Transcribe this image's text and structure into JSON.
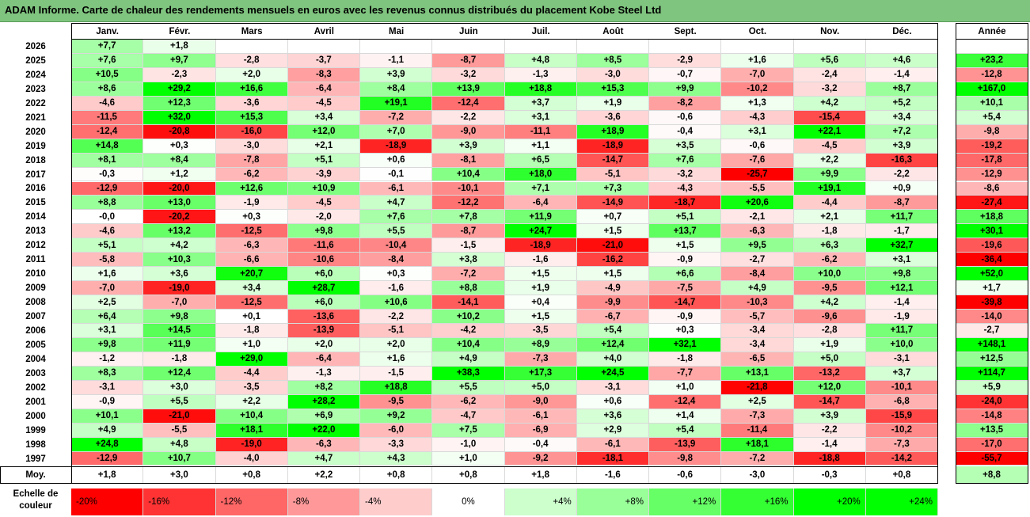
{
  "title": "ADAM Informe. Carte de chaleur des rendements mensuels en euros avec les revenus connus distribués du placement Kobe Steel Ltd",
  "columns": [
    "Janv.",
    "Févr.",
    "Mars",
    "Avril",
    "Mai",
    "Juin",
    "Juil.",
    "Août",
    "Sept.",
    "Oct.",
    "Nov.",
    "Déc."
  ],
  "year_header": "Année",
  "average_label": "Moy.",
  "scale_label": "Echelle de couleur",
  "colors": {
    "title_bar": "#7fc47f",
    "strong_neg": "#ff0000",
    "neutral": "#ffffff",
    "strong_pos": "#00ff00"
  },
  "chart_data": {
    "type": "heatmap",
    "title": "ADAM Informe. Carte de chaleur des rendements mensuels en euros avec les revenus connus distribués du placement Kobe Steel Ltd",
    "x_categories": [
      "Janv.",
      "Févr.",
      "Mars",
      "Avril",
      "Mai",
      "Juin",
      "Juil.",
      "Août",
      "Sept.",
      "Oct.",
      "Nov.",
      "Déc."
    ],
    "rows": [
      {
        "year": "2026",
        "months": [
          "+7,7",
          "+1,8",
          "",
          "",
          "",
          "",
          "",
          "",
          "",
          "",
          "",
          ""
        ],
        "annual": ""
      },
      {
        "year": "2025",
        "months": [
          "+7,6",
          "+9,7",
          "-2,8",
          "-3,7",
          "-1,1",
          "-8,7",
          "+4,8",
          "+8,5",
          "-2,9",
          "+1,6",
          "+5,6",
          "+4,6"
        ],
        "annual": "+23,2"
      },
      {
        "year": "2024",
        "months": [
          "+10,5",
          "-2,3",
          "+2,0",
          "-8,3",
          "+3,9",
          "-3,2",
          "-1,3",
          "-3,0",
          "-0,7",
          "-7,0",
          "-2,4",
          "-1,4"
        ],
        "annual": "-12,8"
      },
      {
        "year": "2023",
        "months": [
          "+8,6",
          "+29,2",
          "+16,6",
          "-6,4",
          "+8,4",
          "+13,9",
          "+18,8",
          "+15,3",
          "+9,9",
          "-10,2",
          "-3,2",
          "+8,7"
        ],
        "annual": "+167,0"
      },
      {
        "year": "2022",
        "months": [
          "-4,6",
          "+12,3",
          "-3,6",
          "-4,5",
          "+19,1",
          "-12,4",
          "+3,7",
          "+1,9",
          "-8,2",
          "+1,3",
          "+4,2",
          "+5,2"
        ],
        "annual": "+10,1"
      },
      {
        "year": "2021",
        "months": [
          "-11,5",
          "+32,0",
          "+15,3",
          "+3,4",
          "-7,2",
          "-2,2",
          "+3,1",
          "-3,6",
          "-0,6",
          "-4,3",
          "-15,4",
          "+3,4"
        ],
        "annual": "+5,4"
      },
      {
        "year": "2020",
        "months": [
          "-12,4",
          "-20,8",
          "-16,0",
          "+12,0",
          "+7,0",
          "-9,0",
          "-11,1",
          "+18,9",
          "-0,4",
          "+3,1",
          "+22,1",
          "+7,2"
        ],
        "annual": "-9,8"
      },
      {
        "year": "2019",
        "months": [
          "+14,8",
          "+0,3",
          "-3,0",
          "+2,1",
          "-18,9",
          "+3,9",
          "+1,1",
          "-18,9",
          "+3,5",
          "-0,6",
          "-4,5",
          "+3,9"
        ],
        "annual": "-19,2"
      },
      {
        "year": "2018",
        "months": [
          "+8,1",
          "+8,4",
          "-7,8",
          "+5,1",
          "+0,6",
          "-8,1",
          "+6,5",
          "-14,7",
          "+7,6",
          "-7,6",
          "+2,2",
          "-16,3"
        ],
        "annual": "-17,8"
      },
      {
        "year": "2017",
        "months": [
          "-0,3",
          "+1,2",
          "-6,2",
          "-3,9",
          "-0,1",
          "+10,4",
          "+18,0",
          "-5,1",
          "-3,2",
          "-25,7",
          "+9,9",
          "-2,2"
        ],
        "annual": "-12,9"
      },
      {
        "year": "2016",
        "months": [
          "-12,9",
          "-20,0",
          "+12,6",
          "+10,9",
          "-6,1",
          "-10,1",
          "+7,1",
          "+7,3",
          "-4,3",
          "-5,5",
          "+19,1",
          "+0,9"
        ],
        "annual": "-8,6"
      },
      {
        "year": "2015",
        "months": [
          "+8,8",
          "+13,0",
          "-1,9",
          "-4,5",
          "+4,7",
          "-12,2",
          "-6,4",
          "-14,9",
          "-18,7",
          "+20,6",
          "-4,4",
          "-8,7"
        ],
        "annual": "-27,4"
      },
      {
        "year": "2014",
        "months": [
          "-0,0",
          "-20,2",
          "+0,3",
          "-2,0",
          "+7,6",
          "+7,8",
          "+11,9",
          "+0,7",
          "+5,1",
          "-2,1",
          "+2,1",
          "+11,7"
        ],
        "annual": "+18,8"
      },
      {
        "year": "2013",
        "months": [
          "-4,6",
          "+13,2",
          "-12,5",
          "+9,8",
          "+5,5",
          "-8,7",
          "+24,7",
          "+1,5",
          "+13,7",
          "-6,3",
          "-1,8",
          "-1,7"
        ],
        "annual": "+30,1"
      },
      {
        "year": "2012",
        "months": [
          "+5,1",
          "+4,2",
          "-6,3",
          "-11,6",
          "-10,4",
          "-1,5",
          "-18,9",
          "-21,0",
          "+1,5",
          "+9,5",
          "+6,3",
          "+32,7"
        ],
        "annual": "-19,6"
      },
      {
        "year": "2011",
        "months": [
          "-5,8",
          "+10,3",
          "-6,6",
          "-10,6",
          "-8,4",
          "+3,8",
          "-1,6",
          "-16,2",
          "-0,9",
          "-2,7",
          "-6,2",
          "+3,1"
        ],
        "annual": "-36,4"
      },
      {
        "year": "2010",
        "months": [
          "+1,6",
          "+3,6",
          "+20,7",
          "+6,0",
          "+0,3",
          "-7,2",
          "+1,5",
          "+1,5",
          "+6,6",
          "-8,4",
          "+10,0",
          "+9,8"
        ],
        "annual": "+52,0"
      },
      {
        "year": "2009",
        "months": [
          "-7,0",
          "-19,0",
          "+3,4",
          "+28,7",
          "-1,6",
          "+8,8",
          "+1,9",
          "-4,9",
          "-7,5",
          "+4,9",
          "-9,5",
          "+12,1"
        ],
        "annual": "+1,7"
      },
      {
        "year": "2008",
        "months": [
          "+2,5",
          "-7,0",
          "-12,5",
          "+6,0",
          "+10,6",
          "-14,1",
          "+0,4",
          "-9,9",
          "-14,7",
          "-10,3",
          "+4,2",
          "-1,4"
        ],
        "annual": "-39,8"
      },
      {
        "year": "2007",
        "months": [
          "+6,4",
          "+9,8",
          "+0,1",
          "-13,6",
          "-2,2",
          "+10,2",
          "+1,5",
          "-6,7",
          "-0,9",
          "-5,7",
          "-9,6",
          "-1,9"
        ],
        "annual": "-14,0"
      },
      {
        "year": "2006",
        "months": [
          "+3,1",
          "+14,5",
          "-1,8",
          "-13,9",
          "-5,1",
          "-4,2",
          "-3,5",
          "+5,4",
          "+0,3",
          "-3,4",
          "-2,8",
          "+11,7"
        ],
        "annual": "-2,7"
      },
      {
        "year": "2005",
        "months": [
          "+9,8",
          "+11,9",
          "+1,0",
          "+2,0",
          "+2,0",
          "+10,4",
          "+8,9",
          "+12,4",
          "+32,1",
          "-3,4",
          "+1,9",
          "+10,0"
        ],
        "annual": "+148,1"
      },
      {
        "year": "2004",
        "months": [
          "-1,2",
          "-1,8",
          "+29,0",
          "-6,4",
          "+1,6",
          "+4,9",
          "-7,3",
          "+4,0",
          "-1,8",
          "-6,5",
          "+5,0",
          "-3,1"
        ],
        "annual": "+12,5"
      },
      {
        "year": "2003",
        "months": [
          "+8,3",
          "+12,4",
          "-4,4",
          "-1,3",
          "-1,5",
          "+38,3",
          "+17,3",
          "+24,5",
          "-7,7",
          "+13,1",
          "-13,2",
          "+3,7"
        ],
        "annual": "+114,7"
      },
      {
        "year": "2002",
        "months": [
          "-3,1",
          "+3,0",
          "-3,5",
          "+8,2",
          "+18,8",
          "+5,5",
          "+5,0",
          "-3,1",
          "+1,0",
          "-21,8",
          "+12,0",
          "-10,1"
        ],
        "annual": "+5,9"
      },
      {
        "year": "2001",
        "months": [
          "-0,9",
          "+5,5",
          "+2,2",
          "+28,2",
          "-9,5",
          "-6,2",
          "-9,0",
          "+0,6",
          "-12,4",
          "+2,5",
          "-14,7",
          "-6,8"
        ],
        "annual": "-24,0"
      },
      {
        "year": "2000",
        "months": [
          "+10,1",
          "-21,0",
          "+10,4",
          "+6,9",
          "+9,2",
          "-4,7",
          "-6,1",
          "+3,6",
          "+1,4",
          "-7,3",
          "+3,9",
          "-15,9"
        ],
        "annual": "-14,8"
      },
      {
        "year": "1999",
        "months": [
          "+4,9",
          "-5,5",
          "+18,1",
          "+22,0",
          "-6,0",
          "+7,5",
          "-6,9",
          "+2,9",
          "+5,4",
          "-11,4",
          "-2,2",
          "-10,2"
        ],
        "annual": "+13,5"
      },
      {
        "year": "1998",
        "months": [
          "+24,8",
          "+4,8",
          "-19,0",
          "-6,3",
          "-3,3",
          "-1,0",
          "-0,4",
          "-6,1",
          "-13,9",
          "+18,1",
          "-1,4",
          "-7,3"
        ],
        "annual": "-17,0"
      },
      {
        "year": "1997",
        "months": [
          "-12,9",
          "+10,7",
          "-4,0",
          "+4,7",
          "+4,3",
          "+1,0",
          "-9,2",
          "-18,1",
          "-9,8",
          "-7,2",
          "-18,8",
          "-14,2"
        ],
        "annual": "-55,7"
      }
    ],
    "averages": [
      "+1,8",
      "+3,0",
      "+0,8",
      "+2,2",
      "+0,8",
      "+0,8",
      "+1,8",
      "-1,6",
      "-0,6",
      "-3,0",
      "-0,3",
      "+0,8"
    ],
    "average_annual": "+8,8",
    "color_scale": [
      {
        "label": "-20%",
        "value": -20
      },
      {
        "label": "-16%",
        "value": -16
      },
      {
        "label": "-12%",
        "value": -12
      },
      {
        "label": "-8%",
        "value": -8
      },
      {
        "label": "-4%",
        "value": -4
      },
      {
        "label": "0%",
        "value": 0
      },
      {
        "label": "+4%",
        "value": 4
      },
      {
        "label": "+8%",
        "value": 8
      },
      {
        "label": "+12%",
        "value": 12
      },
      {
        "label": "+16%",
        "value": 16
      },
      {
        "label": "+20%",
        "value": 20
      },
      {
        "label": "+24%",
        "value": 24
      }
    ]
  }
}
